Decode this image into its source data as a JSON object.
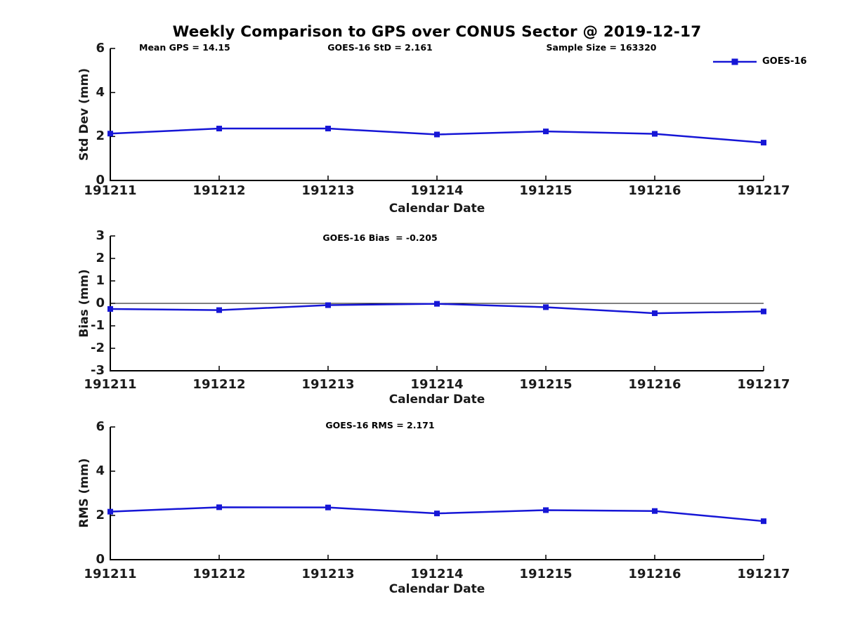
{
  "title": "Weekly Comparison to GPS over CONUS Sector @ 2019-12-17",
  "legend": {
    "label": "GOES-16",
    "position": "top-right",
    "frame": false
  },
  "colors": {
    "series": "#1616d6",
    "axis": "#000000",
    "zero_line": "#000000",
    "text": "#111111"
  },
  "chart_data": [
    {
      "type": "line",
      "title": "",
      "ylabel": "Std Dev (mm)",
      "xlabel": "Calendar Date",
      "categories": [
        "191211",
        "191212",
        "191213",
        "191214",
        "191215",
        "191216",
        "191217"
      ],
      "series": [
        {
          "name": "GOES-16",
          "values": [
            2.13,
            2.36,
            2.36,
            2.09,
            2.23,
            2.12,
            1.72
          ]
        }
      ],
      "ylim": [
        0,
        6
      ],
      "yticks": [
        0,
        2,
        4,
        6
      ],
      "zero_line": false,
      "grid": false,
      "marker": "square",
      "annotations": [
        "Mean GPS = 14.15",
        "GOES-16 StD = 2.161",
        "Sample Size = 163320"
      ]
    },
    {
      "type": "line",
      "title": "",
      "ylabel": "Bias (mm)",
      "xlabel": "Calendar Date",
      "categories": [
        "191211",
        "191212",
        "191213",
        "191214",
        "191215",
        "191216",
        "191217"
      ],
      "series": [
        {
          "name": "GOES-16",
          "values": [
            -0.25,
            -0.3,
            -0.08,
            -0.02,
            -0.17,
            -0.44,
            -0.36
          ]
        }
      ],
      "ylim": [
        -3,
        3
      ],
      "yticks": [
        -3,
        -2,
        -1,
        0,
        1,
        2,
        3
      ],
      "zero_line": true,
      "grid": false,
      "marker": "square",
      "annotations": [
        "GOES-16 Bias  = -0.205"
      ]
    },
    {
      "type": "line",
      "title": "",
      "ylabel": "RMS (mm)",
      "xlabel": "Calendar Date",
      "categories": [
        "191211",
        "191212",
        "191213",
        "191214",
        "191215",
        "191216",
        "191217"
      ],
      "series": [
        {
          "name": "GOES-16",
          "values": [
            2.17,
            2.37,
            2.36,
            2.09,
            2.24,
            2.2,
            1.74
          ]
        }
      ],
      "ylim": [
        0,
        6
      ],
      "yticks": [
        0,
        2,
        4,
        6
      ],
      "zero_line": false,
      "grid": false,
      "marker": "square",
      "annotations": [
        "GOES-16 RMS = 2.171"
      ]
    }
  ]
}
